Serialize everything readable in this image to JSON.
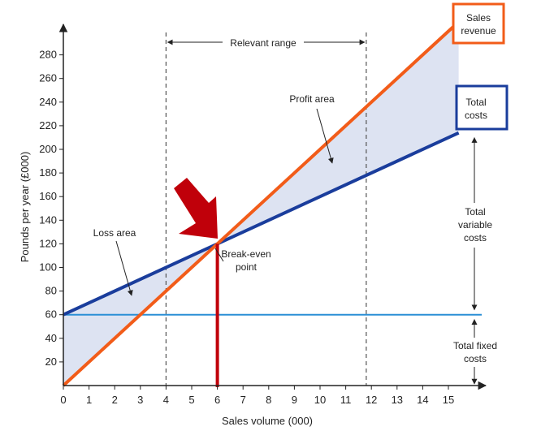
{
  "colors": {
    "sales_revenue": "#f25c19",
    "total_costs": "#1a3d9c",
    "fixed_costs": "#2b8fd6",
    "break_even": "#c0000a",
    "shade": "#dde3f2",
    "axis": "#222222"
  },
  "chart_data": {
    "type": "line",
    "title": "",
    "xlabel": "Sales volume (000)",
    "ylabel": "Pounds per year (£000)",
    "xlim": [
      0,
      16.5
    ],
    "ylim": [
      0,
      300
    ],
    "x_ticks": [
      0,
      1,
      2,
      3,
      4,
      5,
      6,
      7,
      8,
      9,
      10,
      11,
      12,
      13,
      14,
      15
    ],
    "y_ticks": [
      20,
      40,
      60,
      80,
      100,
      120,
      140,
      160,
      180,
      200,
      220,
      240,
      260,
      280
    ],
    "grid": false,
    "series": [
      {
        "name": "Sales revenue",
        "color": "#f25c19",
        "x": [
          0,
          15.4
        ],
        "y": [
          0,
          308
        ]
      },
      {
        "name": "Total costs",
        "color": "#1a3d9c",
        "x": [
          0,
          15.4
        ],
        "y": [
          60,
          214
        ]
      },
      {
        "name": "Total fixed costs",
        "color": "#2b8fd6",
        "x": [
          0,
          16.5
        ],
        "y": [
          60,
          60
        ]
      }
    ],
    "break_even": {
      "x": 6,
      "y": 120
    },
    "relevant_range": {
      "from": 4,
      "to": 11.8
    },
    "shaded_regions": [
      "Loss area",
      "Profit area"
    ]
  },
  "labels": {
    "relevant_range": "Relevant range",
    "profit_area": "Profit area",
    "loss_area": "Loss area",
    "break_even_line1": "Break-even",
    "break_even_line2": "point",
    "sales_revenue_line1": "Sales",
    "sales_revenue_line2": "revenue",
    "total_costs_line1": "Total",
    "total_costs_line2": "costs",
    "total_variable_line1": "Total",
    "total_variable_line2": "variable",
    "total_variable_line3": "costs",
    "total_fixed_line1": "Total fixed",
    "total_fixed_line2": "costs"
  }
}
